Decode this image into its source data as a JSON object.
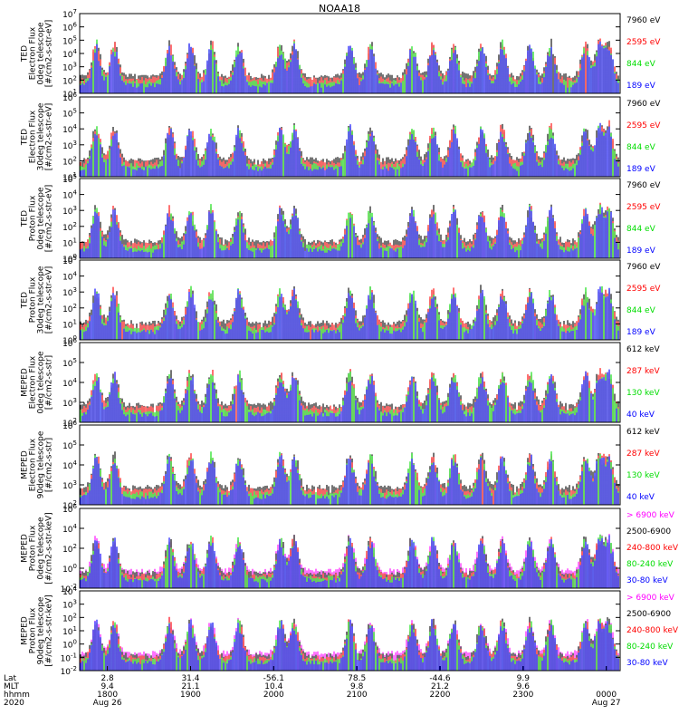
{
  "chart_data": {
    "type": "line",
    "title": "NOAA18",
    "colors": {
      "black": "#000000",
      "red": "#ff0000",
      "green": "#00dd00",
      "blue": "#0000ff",
      "magenta": "#ff00ff"
    },
    "panels": [
      {
        "ylabel": [
          "TED",
          "Electron Flux",
          "0deg telescope",
          "[#/cm2-s-str-eV]"
        ],
        "yticks": [
          "10^1",
          "10^2",
          "10^3",
          "10^4",
          "10^5",
          "10^6",
          "10^7"
        ],
        "ylog": [
          1,
          7
        ],
        "legend": [
          {
            "label": "7960 eV",
            "color": "black"
          },
          {
            "label": "2595 eV",
            "color": "red"
          },
          {
            "label": "844 eV",
            "color": "green"
          },
          {
            "label": "189 eV",
            "color": "blue"
          }
        ]
      },
      {
        "ylabel": [
          "TED",
          "Electron Flux",
          "30deg telescope",
          "[#/cm2-s-str-eV]"
        ],
        "yticks": [
          "10^1",
          "10^2",
          "10^3",
          "10^4",
          "10^5",
          "10^6"
        ],
        "ylog": [
          1,
          6
        ],
        "legend": [
          {
            "label": "7960 eV",
            "color": "black"
          },
          {
            "label": "2595 eV",
            "color": "red"
          },
          {
            "label": "844 eV",
            "color": "green"
          },
          {
            "label": "189 eV",
            "color": "blue"
          }
        ]
      },
      {
        "ylabel": [
          "TED",
          "Proton Flux",
          "0deg telescope",
          "[#/cm2-s-str-eV]"
        ],
        "yticks": [
          "10^0",
          "10^1",
          "10^2",
          "10^3",
          "10^4",
          "10^5"
        ],
        "ylog": [
          0,
          5
        ],
        "legend": [
          {
            "label": "7960 eV",
            "color": "black"
          },
          {
            "label": "2595 eV",
            "color": "red"
          },
          {
            "label": "844 eV",
            "color": "green"
          },
          {
            "label": "189 eV",
            "color": "blue"
          }
        ]
      },
      {
        "ylabel": [
          "TED",
          "Proton Flux",
          "30deg telescope",
          "[#/cm2-s-str-eV]"
        ],
        "yticks": [
          "10^0",
          "10^1",
          "10^2",
          "10^3",
          "10^4",
          "10^5"
        ],
        "ylog": [
          0,
          5
        ],
        "legend": [
          {
            "label": "7960 eV",
            "color": "black"
          },
          {
            "label": "2595 eV",
            "color": "red"
          },
          {
            "label": "844 eV",
            "color": "green"
          },
          {
            "label": "189 eV",
            "color": "blue"
          }
        ]
      },
      {
        "ylabel": [
          "MEPED",
          "Electron Flux",
          "0deg telescope",
          "[#/cm2-s-str]"
        ],
        "yticks": [
          "10^2",
          "10^3",
          "10^4",
          "10^5",
          "10^6"
        ],
        "ylog": [
          2,
          6
        ],
        "legend": [
          {
            "label": "612 keV",
            "color": "black"
          },
          {
            "label": "287 keV",
            "color": "red"
          },
          {
            "label": "130 keV",
            "color": "green"
          },
          {
            "label": "40 keV",
            "color": "blue"
          }
        ]
      },
      {
        "ylabel": [
          "MEPED",
          "Electron Flux",
          "90deg telescope",
          "[#/cm2-s-str]"
        ],
        "yticks": [
          "10^2",
          "10^3",
          "10^4",
          "10^5",
          "10^6"
        ],
        "ylog": [
          2,
          6
        ],
        "legend": [
          {
            "label": "612 keV",
            "color": "black"
          },
          {
            "label": "287 keV",
            "color": "red"
          },
          {
            "label": "130 keV",
            "color": "green"
          },
          {
            "label": "40 keV",
            "color": "blue"
          }
        ]
      },
      {
        "ylabel": [
          "MEPED",
          "Proton Flux",
          "0deg telescope",
          "[#/cm2-s-str-keV]"
        ],
        "yticks": [
          "10^-2",
          "10^0",
          "10^2",
          "10^4",
          "10^6"
        ],
        "ylog": [
          -2,
          6
        ],
        "legend": [
          {
            "label": "> 6900 keV",
            "color": "magenta"
          },
          {
            "label": "2500-6900",
            "color": "black"
          },
          {
            "label": "240-800 keV",
            "color": "red"
          },
          {
            "label": "80-240 keV",
            "color": "green"
          },
          {
            "label": "30-80 keV",
            "color": "blue"
          }
        ]
      },
      {
        "ylabel": [
          "MEPED",
          "Proton Flux",
          "90deg telescope",
          "[#/cm2-s-str-keV]"
        ],
        "yticks": [
          "10^-2",
          "10^-1",
          "10^0",
          "10^1",
          "10^2",
          "10^3",
          "10^4"
        ],
        "ylog": [
          -2,
          4
        ],
        "legend": [
          {
            "label": "> 6900 keV",
            "color": "magenta"
          },
          {
            "label": "2500-6900",
            "color": "black"
          },
          {
            "label": "240-800 keV",
            "color": "red"
          },
          {
            "label": "80-240 keV",
            "color": "green"
          },
          {
            "label": "30-80 keV",
            "color": "blue"
          }
        ]
      }
    ],
    "xaxis": {
      "row_labels": [
        "Lat",
        "MLT",
        "hhmm",
        "2020"
      ],
      "xlim": [
        "1740",
        "0010"
      ],
      "ticks": [
        {
          "lat": "2.8",
          "mlt": "9.4",
          "hhmm": "1800",
          "date": "Aug 26"
        },
        {
          "lat": "31.4",
          "mlt": "21.1",
          "hhmm": "1900",
          "date": ""
        },
        {
          "lat": "-56.1",
          "mlt": "10.4",
          "hhmm": "2000",
          "date": ""
        },
        {
          "lat": "78.5",
          "mlt": "9.8",
          "hhmm": "2100",
          "date": ""
        },
        {
          "lat": "-44.6",
          "mlt": "21.2",
          "hhmm": "2200",
          "date": ""
        },
        {
          "lat": "9.9",
          "mlt": "9.6",
          "hhmm": "2300",
          "date": ""
        },
        {
          "lat": "",
          "mlt": "",
          "hhmm": "0000",
          "date": "Aug 27"
        }
      ]
    },
    "peaks_hhmm": [
      "1752",
      "1805",
      "1845",
      "1900",
      "1915",
      "1935",
      "2005",
      "2015",
      "2055",
      "2110",
      "2140",
      "2155",
      "2210",
      "2230",
      "2245",
      "2305",
      "2320",
      "2345",
      "2355",
      "0002"
    ]
  }
}
